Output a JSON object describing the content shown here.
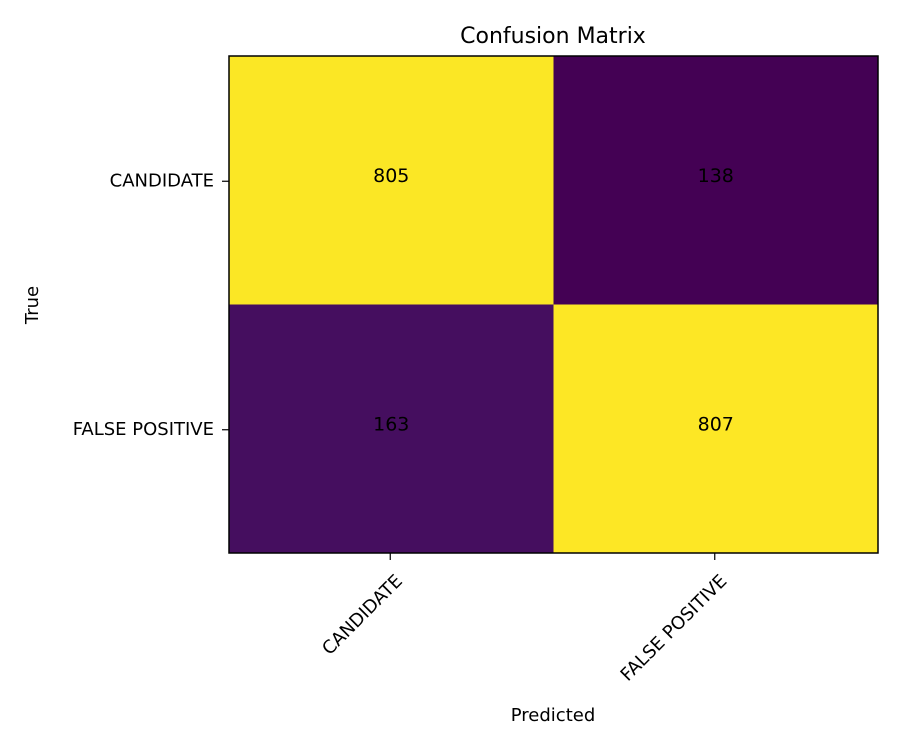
{
  "chart_data": {
    "type": "heatmap",
    "title": "Confusion Matrix",
    "xlabel": "Predicted",
    "ylabel": "True",
    "x_categories": [
      "CANDIDATE",
      "FALSE POSITIVE"
    ],
    "y_categories": [
      "CANDIDATE",
      "FALSE POSITIVE"
    ],
    "values": [
      [
        805,
        138
      ],
      [
        163,
        807
      ]
    ],
    "colormap": "viridis",
    "value_range": [
      138,
      807
    ],
    "grid": false,
    "legend": "none"
  }
}
